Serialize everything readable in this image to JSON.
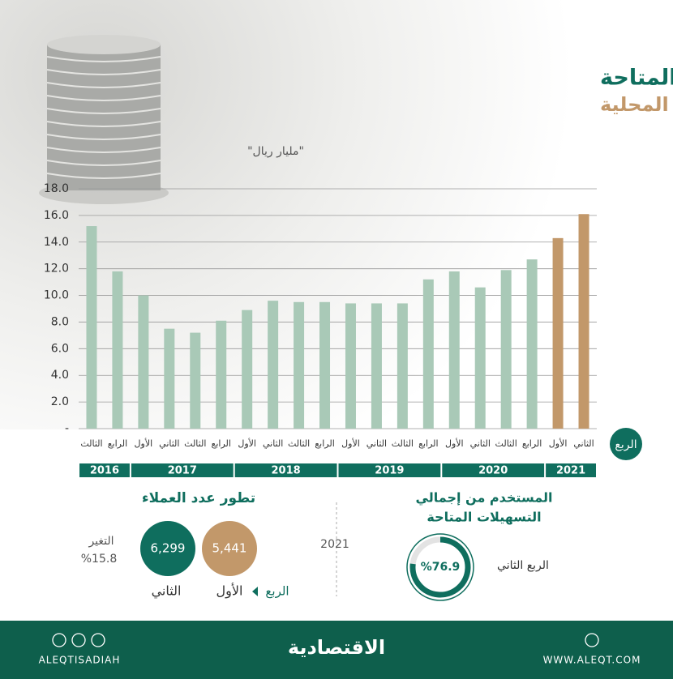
{
  "chart_data": {
    "type": "bar",
    "title": "التسهيلات المتاحة",
    "subtitle": "لمتداولي الأسهم المحلية",
    "y_label": "\"مليار ريال\"",
    "x_label": "الربع",
    "categories": [
      "الثالث",
      "الرابع",
      "الأول",
      "الثاني",
      "الثالث",
      "الرابع",
      "الأول",
      "الثاني",
      "الثالث",
      "الرابع",
      "الأول",
      "الثاني",
      "الثالث",
      "الرابع",
      "الأول",
      "الثاني",
      "الثالث",
      "الرابع",
      "الأول",
      "الثاني"
    ],
    "values": [
      15.2,
      11.8,
      10.0,
      7.5,
      7.2,
      8.1,
      8.9,
      9.6,
      9.5,
      9.5,
      9.4,
      9.4,
      9.4,
      11.2,
      11.8,
      10.6,
      11.9,
      12.7,
      14.3,
      16.1
    ],
    "colors": [
      "#a9c9b7",
      "#a9c9b7",
      "#a9c9b7",
      "#a9c9b7",
      "#a9c9b7",
      "#a9c9b7",
      "#a9c9b7",
      "#a9c9b7",
      "#a9c9b7",
      "#a9c9b7",
      "#a9c9b7",
      "#a9c9b7",
      "#a9c9b7",
      "#a9c9b7",
      "#a9c9b7",
      "#a9c9b7",
      "#a9c9b7",
      "#a9c9b7",
      "#c2986a",
      "#c2986a"
    ],
    "year_groups": [
      {
        "label": "2016",
        "count": 2
      },
      {
        "label": "2017",
        "count": 4
      },
      {
        "label": "2018",
        "count": 4
      },
      {
        "label": "2019",
        "count": 4
      },
      {
        "label": "2020",
        "count": 4
      },
      {
        "label": "2021",
        "count": 2
      }
    ],
    "ylim": [
      0,
      18
    ],
    "yticks": [
      {
        "value": 0,
        "label": "-"
      },
      {
        "value": 2,
        "label": "2.0"
      },
      {
        "value": 4,
        "label": "4.0"
      },
      {
        "value": 6,
        "label": "6.0"
      },
      {
        "value": 8,
        "label": "8.0"
      },
      {
        "value": 10,
        "label": "10.0"
      },
      {
        "value": 12,
        "label": "12.0"
      },
      {
        "value": 14,
        "label": "14.0"
      },
      {
        "value": 16,
        "label": "16.0"
      },
      {
        "value": 18,
        "label": "18.0"
      }
    ],
    "grid": true
  },
  "customers": {
    "title": "تطور عدد العملاء",
    "quarter_word": "الربع",
    "q1_label": "الأول",
    "q1_value": "5,441",
    "q2_label": "الثاني",
    "q2_value": "6,299",
    "change_label": "التغير",
    "change_value": "%15.8"
  },
  "year": "2021",
  "usage": {
    "title_line1": "المستخدم من إجمالي",
    "title_line2": "التسهيلات المتاحة",
    "quarter": "الربع الثاني",
    "value": 76.9,
    "value_label": "%76.9"
  },
  "footer": {
    "handle": "ALEQTISADIAH",
    "logo": "الاقتصادية",
    "website": "WWW.ALEQT.COM"
  }
}
